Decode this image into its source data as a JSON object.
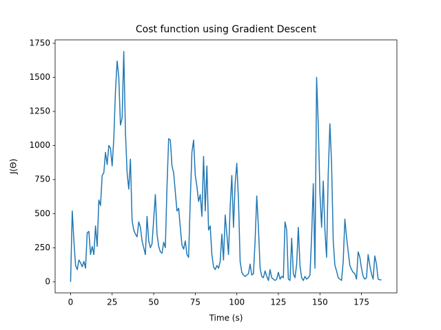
{
  "chart_data": {
    "type": "line",
    "title": "Cost function using Gradient Descent",
    "x_label": "Time (s)",
    "y_label": "J(Θ)",
    "color": "#1f77b4",
    "x": [
      0,
      1,
      2,
      3,
      4,
      5,
      6,
      7,
      8,
      9,
      10,
      11,
      12,
      13,
      14,
      15,
      16,
      17,
      18,
      19,
      20,
      21,
      22,
      23,
      24,
      25,
      26,
      27,
      28,
      29,
      30,
      31,
      32,
      33,
      34,
      35,
      36,
      37,
      38,
      39,
      40,
      41,
      42,
      43,
      44,
      45,
      46,
      47,
      48,
      49,
      50,
      51,
      52,
      53,
      54,
      55,
      56,
      57,
      58,
      59,
      60,
      61,
      62,
      63,
      64,
      65,
      66,
      67,
      68,
      69,
      70,
      71,
      72,
      73,
      74,
      75,
      76,
      77,
      78,
      79,
      80,
      81,
      82,
      83,
      84,
      85,
      86,
      87,
      88,
      89,
      90,
      91,
      92,
      93,
      94,
      95,
      96,
      97,
      98,
      99,
      100,
      101,
      102,
      103,
      104,
      105,
      106,
      107,
      108,
      109,
      110,
      111,
      112,
      113,
      114,
      115,
      116,
      117,
      118,
      119,
      120,
      121,
      122,
      123,
      124,
      125,
      126,
      127,
      128,
      129,
      130,
      131,
      132,
      133,
      134,
      135,
      136,
      137,
      138,
      139,
      140,
      141,
      142,
      143,
      144,
      145,
      146,
      147,
      148,
      149,
      150,
      151,
      152,
      153,
      154,
      155,
      156,
      157,
      158,
      159,
      160,
      161,
      162,
      163,
      164,
      165,
      166,
      167,
      168,
      169,
      170,
      171,
      172,
      173,
      174,
      175,
      176,
      177,
      178,
      179,
      180,
      181,
      182,
      183,
      184,
      185,
      186,
      187
    ],
    "values": [
      0,
      520,
      300,
      120,
      90,
      160,
      140,
      110,
      150,
      100,
      360,
      370,
      200,
      260,
      200,
      410,
      260,
      600,
      560,
      780,
      800,
      950,
      860,
      1000,
      980,
      850,
      1050,
      1400,
      1620,
      1500,
      1150,
      1200,
      1690,
      1100,
      800,
      680,
      900,
      450,
      380,
      350,
      330,
      440,
      400,
      300,
      250,
      200,
      480,
      300,
      250,
      280,
      460,
      640,
      350,
      260,
      220,
      210,
      290,
      250,
      700,
      1050,
      1040,
      850,
      800,
      660,
      520,
      540,
      400,
      270,
      240,
      300,
      200,
      180,
      600,
      950,
      1040,
      780,
      700,
      590,
      640,
      480,
      920,
      520,
      850,
      380,
      410,
      200,
      110,
      90,
      120,
      100,
      150,
      350,
      160,
      490,
      350,
      200,
      550,
      780,
      400,
      720,
      870,
      600,
      150,
      70,
      50,
      40,
      50,
      60,
      130,
      50,
      60,
      300,
      630,
      400,
      100,
      40,
      30,
      80,
      40,
      10,
      90,
      30,
      20,
      10,
      20,
      70,
      20,
      40,
      30,
      440,
      380,
      20,
      10,
      320,
      60,
      30,
      130,
      400,
      120,
      30,
      10,
      40,
      20,
      30,
      50,
      330,
      720,
      100,
      1500,
      1150,
      650,
      400,
      740,
      380,
      180,
      800,
      1160,
      870,
      300,
      120,
      80,
      30,
      20,
      10,
      150,
      460,
      330,
      220,
      120,
      90,
      70,
      60,
      20,
      220,
      180,
      100,
      40,
      20,
      30,
      200,
      120,
      60,
      20,
      190,
      130,
      20,
      15,
      15
    ],
    "xlim": [
      -9.3,
      196.3
    ],
    "ylim": [
      -81,
      1775
    ],
    "xticks": [
      0,
      25,
      50,
      75,
      100,
      125,
      150,
      175
    ],
    "yticks": [
      0,
      250,
      500,
      750,
      1000,
      1250,
      1500,
      1750
    ]
  }
}
